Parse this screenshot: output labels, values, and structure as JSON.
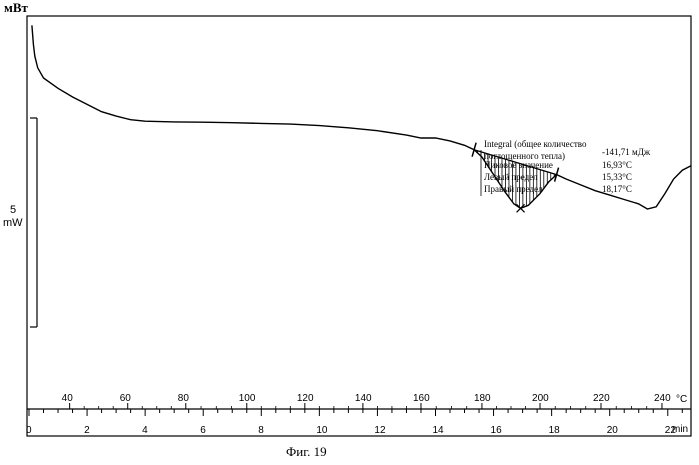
{
  "figure": {
    "y_unit": "мВт",
    "caption": "Фиг. 19",
    "scale_bar_label_value": "5",
    "scale_bar_label_unit": "mW"
  },
  "annotation": {
    "title_line1": "Integral  (общее количество",
    "title_line2": "поглощенного тепла)",
    "title_value": "-141,71 мДж",
    "rows": [
      {
        "label": "Пиковое значение",
        "value": "16,93°C"
      },
      {
        "label": "Левый предел",
        "value": "15,33°C"
      },
      {
        "label": "Правый предел",
        "value": "18,17°C"
      }
    ]
  },
  "colors": {
    "line": "#000000",
    "background": "#ffffff"
  },
  "chart_data": {
    "type": "line",
    "title": "",
    "xlabel": "min",
    "x_secondary_label": "°C",
    "ylabel": "мВт",
    "xlim": [
      0,
      22.8
    ],
    "ylim": [
      0,
      22
    ],
    "grid": false,
    "x_ticks_time": [
      0,
      2,
      4,
      6,
      8,
      10,
      12,
      14,
      16,
      18,
      20,
      22
    ],
    "x_ticks_temperature": [
      40,
      60,
      80,
      100,
      120,
      140,
      160,
      180,
      200,
      220,
      240
    ],
    "temperature_tick_time": [
      1.4,
      3.4,
      5.4,
      7.5,
      9.5,
      11.5,
      13.5,
      15.6,
      17.6,
      19.7,
      21.8
    ],
    "series": [
      {
        "values": [
          [
            0.1,
            21.5
          ],
          [
            0.15,
            20.2
          ],
          [
            0.2,
            19.4
          ],
          [
            0.3,
            18.6
          ],
          [
            0.5,
            17.9
          ],
          [
            1.0,
            17.2
          ],
          [
            1.5,
            16.6
          ],
          [
            2.0,
            16.1
          ],
          [
            2.5,
            15.6
          ],
          [
            3.0,
            15.3
          ],
          [
            3.5,
            15.05
          ],
          [
            4.0,
            14.95
          ],
          [
            5.0,
            14.9
          ],
          [
            6.0,
            14.88
          ],
          [
            7.0,
            14.85
          ],
          [
            8.0,
            14.8
          ],
          [
            9.0,
            14.75
          ],
          [
            10.0,
            14.65
          ],
          [
            11.0,
            14.5
          ],
          [
            12.0,
            14.3
          ],
          [
            13.0,
            14.0
          ],
          [
            13.5,
            13.8
          ],
          [
            14.0,
            13.8
          ],
          [
            14.5,
            13.6
          ],
          [
            15.0,
            13.3
          ],
          [
            15.33,
            13.0
          ],
          [
            15.6,
            12.5
          ],
          [
            16.0,
            11.3
          ],
          [
            16.4,
            10.1
          ],
          [
            16.7,
            9.3
          ],
          [
            16.93,
            9.0
          ],
          [
            17.2,
            9.2
          ],
          [
            17.6,
            10.0
          ],
          [
            17.9,
            10.8
          ],
          [
            18.17,
            11.3
          ],
          [
            18.5,
            11.0
          ],
          [
            19.0,
            10.6
          ],
          [
            19.5,
            10.2
          ],
          [
            20.0,
            9.9
          ],
          [
            20.5,
            9.6
          ],
          [
            21.0,
            9.3
          ],
          [
            21.3,
            8.95
          ],
          [
            21.6,
            9.1
          ],
          [
            21.9,
            10.0
          ],
          [
            22.2,
            11.0
          ],
          [
            22.5,
            11.6
          ],
          [
            22.8,
            11.9
          ]
        ]
      }
    ],
    "integration": {
      "left_limit_time": 15.33,
      "right_limit_time": 18.17,
      "peak_time": 16.93,
      "peak_value": 9.0,
      "baseline_start": [
        15.33,
        13.0
      ],
      "baseline_end": [
        18.17,
        11.3
      ]
    },
    "scale_bar_mW": 5
  }
}
